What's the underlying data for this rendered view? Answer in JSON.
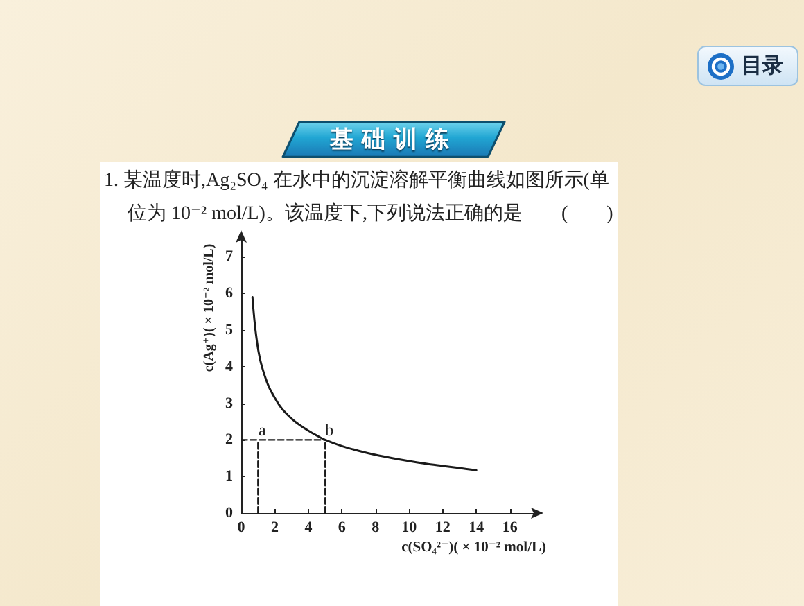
{
  "chart_data": {
    "type": "line",
    "title": "基础训练",
    "subtitle": "1. 某温度时,Ag₂SO₄ 在水中的沉淀溶解平衡曲线如图所示(单位为 10⁻² mol/L)。该温度下,下列说法正确的是　　(　　)",
    "xlabel": "c(SO₄²⁻)( × 10⁻² mol/L)",
    "ylabel": "c(Ag⁺)( × 10⁻² mol/L)",
    "annotations": [
      {
        "text": "a",
        "x": 1,
        "y": 2
      },
      {
        "text": "b",
        "x": 5,
        "y": 2
      },
      "目录"
    ],
    "series": [
      {
        "color": "#1a1a1a",
        "x": [
          0.67,
          0.75,
          0.85,
          1,
          1.15,
          1.3,
          1.5,
          1.7,
          2,
          2.3,
          2.6,
          3,
          3.5,
          4,
          4.5,
          5,
          6,
          7,
          8,
          9,
          10,
          11,
          12,
          13,
          14
        ],
        "values": [
          5.9,
          5.45,
          5.0,
          4.5,
          4.15,
          3.9,
          3.62,
          3.4,
          3.15,
          2.93,
          2.76,
          2.58,
          2.4,
          2.25,
          2.12,
          2.0,
          1.83,
          1.7,
          1.59,
          1.5,
          1.42,
          1.35,
          1.29,
          1.23,
          1.17
        ]
      },
      {
        "color": "#1a1a1a",
        "x": [
          0,
          5
        ],
        "values": [
          2,
          2
        ],
        "line_style": "dashed"
      },
      {
        "color": "#1a1a1a",
        "x": [
          1,
          1
        ],
        "values": [
          0,
          2
        ],
        "line_style": "dashed"
      },
      {
        "color": "#1a1a1a",
        "x": [
          5,
          5
        ],
        "values": [
          0,
          2
        ],
        "line_style": "dashed"
      }
    ],
    "xlim": [
      0,
      17.5
    ],
    "ylim": [
      0,
      7.5
    ],
    "xticks": [
      0,
      2,
      4,
      6,
      8,
      10,
      12,
      14,
      16
    ],
    "yticks": [
      0,
      1,
      2,
      3,
      4,
      5,
      6,
      7
    ],
    "marker": "none",
    "line_style": "solid"
  }
}
